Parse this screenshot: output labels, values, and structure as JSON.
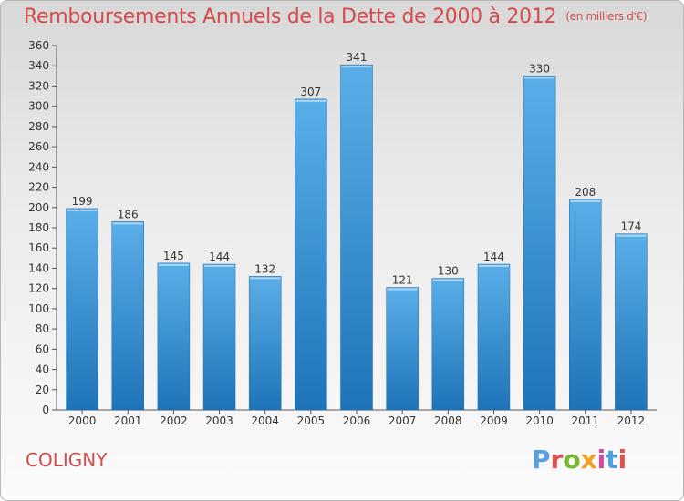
{
  "header": {
    "title": "Remboursements Annuels de la Dette de 2000 à 2012",
    "unit": "(en milliers d'€)"
  },
  "footer": {
    "commune": "COLIGNY",
    "logo_text": "Proxiti"
  },
  "colors": {
    "title": "#d34b4b",
    "bar_light": "#5aaee8",
    "bar_dark": "#1e74b8",
    "logo": [
      "#5aa0e0",
      "#e05050",
      "#7ab833",
      "#f0a020",
      "#d04ba0",
      "#4aa0e0",
      "#e05050"
    ]
  },
  "chart_data": {
    "type": "bar",
    "title": "Remboursements Annuels de la Dette de 2000 à 2012",
    "subtitle": "(en milliers d'€)",
    "xlabel": "",
    "ylabel": "",
    "categories": [
      "2000",
      "2001",
      "2002",
      "2003",
      "2004",
      "2005",
      "2006",
      "2007",
      "2008",
      "2009",
      "2010",
      "2011",
      "2012"
    ],
    "values": [
      199,
      186,
      145,
      144,
      132,
      307,
      341,
      121,
      130,
      144,
      330,
      208,
      174
    ],
    "ylim": [
      0,
      360
    ],
    "ytick_step": 20,
    "grid": false,
    "data_labels": true
  }
}
